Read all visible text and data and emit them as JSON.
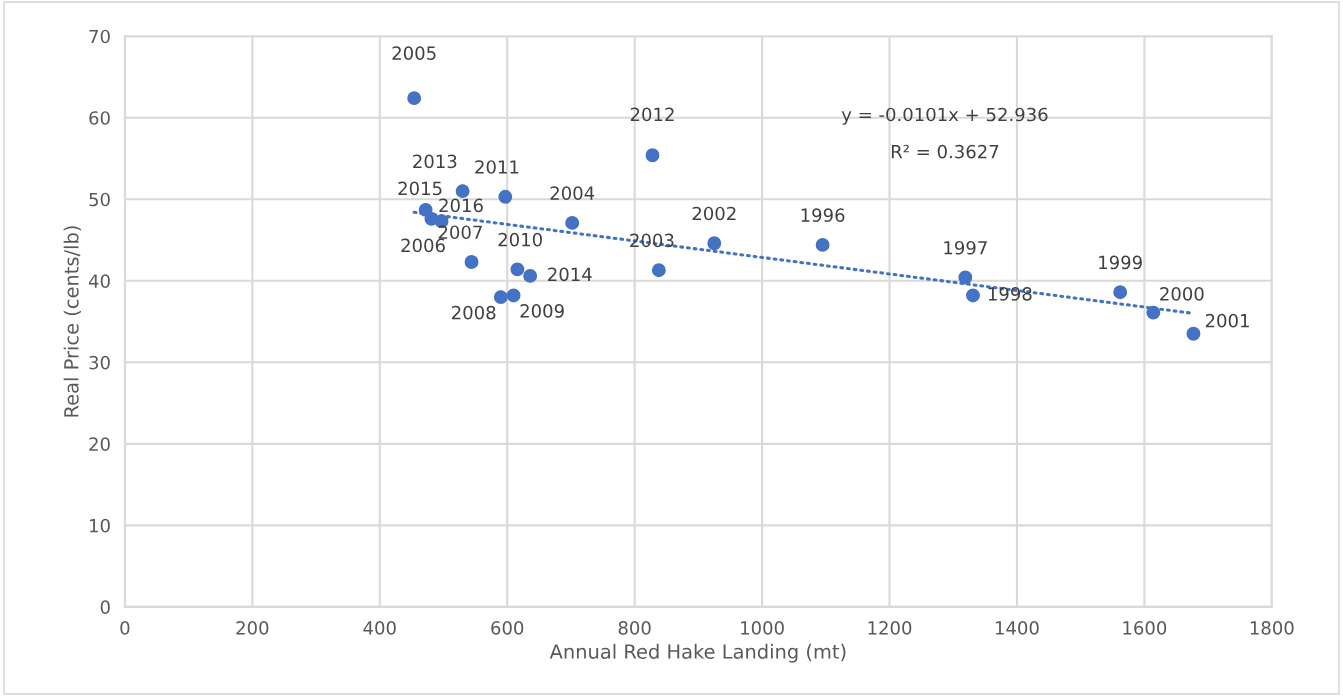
{
  "chart_data": {
    "type": "scatter",
    "xlabel": "Annual Red Hake Landing (mt)",
    "ylabel": "Real Price (cents/lb)",
    "xlim": [
      0,
      1800
    ],
    "xticks": [
      0,
      200,
      400,
      600,
      800,
      1000,
      1200,
      1400,
      1600,
      1800
    ],
    "ylim": [
      0,
      70
    ],
    "yticks": [
      0,
      10,
      20,
      30,
      40,
      50,
      60,
      70
    ],
    "grid": true,
    "series": [
      {
        "color": "#4472c4",
        "marker": "circle",
        "x": [
          1095,
          1319,
          1331,
          1562,
          1614,
          1677,
          925,
          838,
          702,
          454,
          481,
          544,
          590,
          610,
          616,
          597,
          828,
          530,
          636,
          472,
          497
        ],
        "values": [
          44.4,
          40.4,
          38.2,
          38.6,
          36.1,
          33.5,
          44.6,
          41.3,
          47.1,
          62.4,
          47.6,
          42.3,
          38.0,
          38.2,
          41.4,
          50.3,
          55.4,
          51.0,
          40.6,
          48.7,
          47.3
        ]
      },
      {
        "type": "line",
        "color": "#4472c4",
        "line_style": "dotted",
        "x": [
          454,
          1677
        ],
        "values": [
          48.4,
          36.0
        ]
      }
    ],
    "annotations": [
      {
        "text": "1996",
        "x": 1095,
        "y": 44.4
      },
      {
        "text": "1997",
        "x": 1319,
        "y": 40.4
      },
      {
        "text": "1998",
        "x": 1331,
        "y": 38.2
      },
      {
        "text": "1999",
        "x": 1562,
        "y": 38.6
      },
      {
        "text": "2000",
        "x": 1614,
        "y": 36.1
      },
      {
        "text": "2001",
        "x": 1677,
        "y": 33.5
      },
      {
        "text": "2002",
        "x": 925,
        "y": 44.6
      },
      {
        "text": "2003",
        "x": 838,
        "y": 41.3
      },
      {
        "text": "2004",
        "x": 702,
        "y": 47.1
      },
      {
        "text": "2005",
        "x": 454,
        "y": 62.4
      },
      {
        "text": "2006",
        "x": 481,
        "y": 47.6
      },
      {
        "text": "2007",
        "x": 544,
        "y": 42.3
      },
      {
        "text": "2008",
        "x": 590,
        "y": 38.0
      },
      {
        "text": "2009",
        "x": 610,
        "y": 38.2
      },
      {
        "text": "2010",
        "x": 616,
        "y": 41.4
      },
      {
        "text": "2011",
        "x": 597,
        "y": 50.3
      },
      {
        "text": "2012",
        "x": 828,
        "y": 55.4
      },
      {
        "text": "2013",
        "x": 530,
        "y": 51.0
      },
      {
        "text": "2014",
        "x": 636,
        "y": 40.6
      },
      {
        "text": "2015",
        "x": 472,
        "y": 48.7
      },
      {
        "text": "2016",
        "x": 497,
        "y": 47.3
      },
      "y = -0.0101x + 52.936",
      "R² = 0.3627"
    ]
  }
}
